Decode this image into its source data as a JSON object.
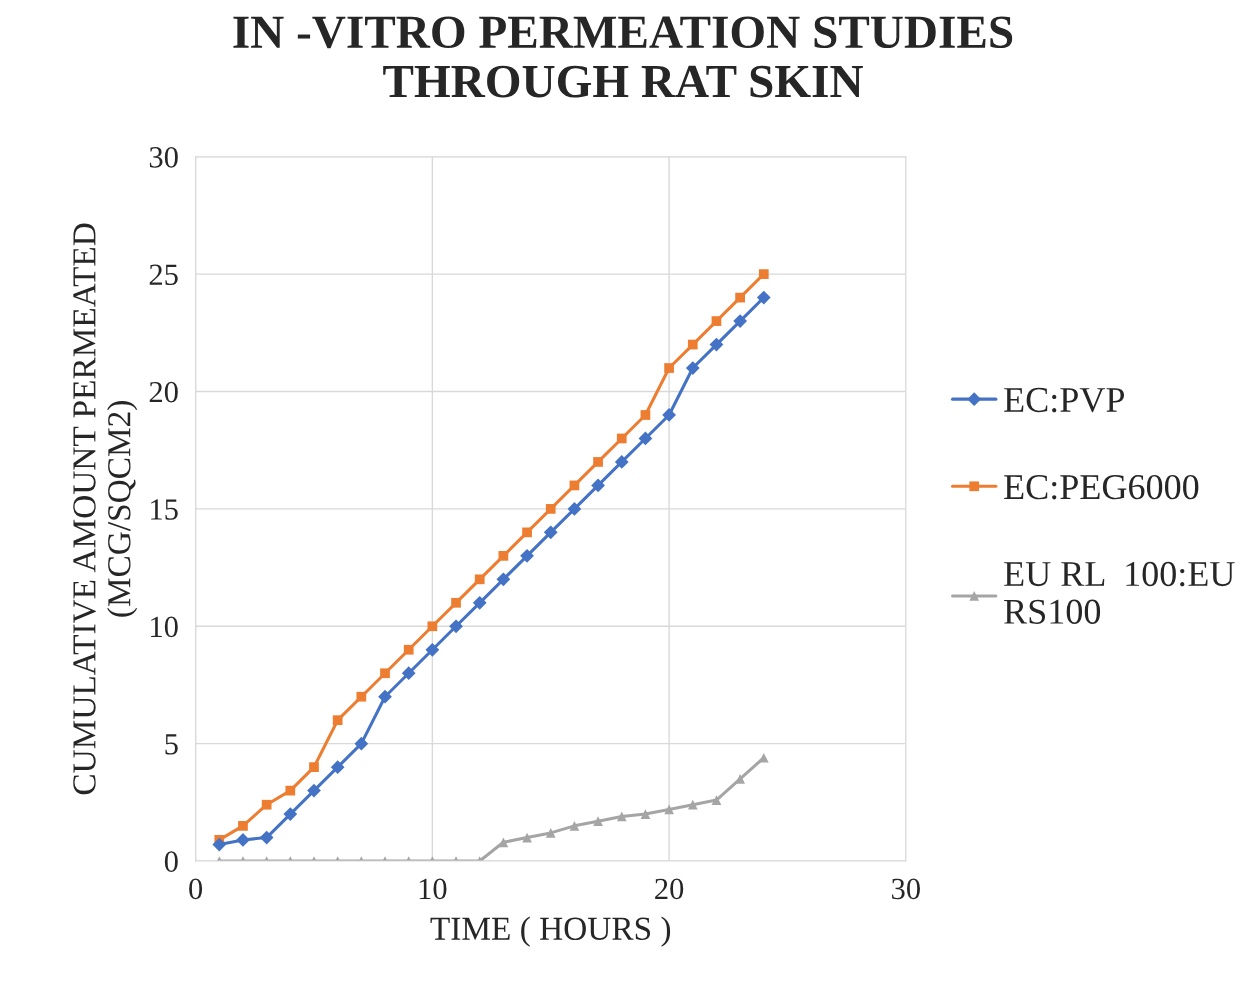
{
  "chart_data": {
    "type": "line",
    "title": "IN -VITRO PERMEATION STUDIES\nTHROUGH RAT SKIN",
    "xlabel": "TIME ( HOURS )",
    "ylabel": "CUMULATIVE AMOUNT PERMEATED\n(MCG/SQCM2)",
    "x": [
      1,
      2,
      3,
      4,
      5,
      6,
      7,
      8,
      9,
      10,
      11,
      12,
      13,
      14,
      15,
      16,
      17,
      18,
      19,
      20,
      21,
      22,
      23,
      24
    ],
    "series": [
      {
        "name": "EC:PVP",
        "color": "#4472c4",
        "marker": "diamond",
        "values": [
          0.7,
          0.9,
          1.0,
          2,
          3,
          4,
          5,
          7,
          8,
          9,
          10,
          11,
          12,
          13,
          14,
          15,
          16,
          17,
          18,
          19,
          21,
          22,
          23,
          24
        ]
      },
      {
        "name": "EC:PEG6000",
        "color": "#ed7d31",
        "marker": "square",
        "values": [
          0.9,
          1.5,
          2.4,
          3,
          4,
          6,
          7,
          8,
          9,
          10,
          11,
          12,
          13,
          14,
          15,
          16,
          17,
          18,
          19,
          21,
          22,
          23,
          24,
          25
        ]
      },
      {
        "name": "EU RL  100:EU\nRS100",
        "color": "#a5a5a5",
        "marker": "triangle",
        "values": [
          0,
          0,
          0,
          0,
          0,
          0,
          0,
          0,
          0,
          0,
          0,
          0,
          0.8,
          1.0,
          1.2,
          1.5,
          1.7,
          1.9,
          2.0,
          2.2,
          2.4,
          2.6,
          3.5,
          4.4
        ]
      }
    ],
    "xlim": [
      0,
      30
    ],
    "xticks": [
      0,
      10,
      20,
      30
    ],
    "ylim": [
      0,
      30
    ],
    "yticks": [
      0,
      5,
      10,
      15,
      20,
      25,
      30
    ],
    "grid": true,
    "legend": "right",
    "line_style": "solid"
  }
}
